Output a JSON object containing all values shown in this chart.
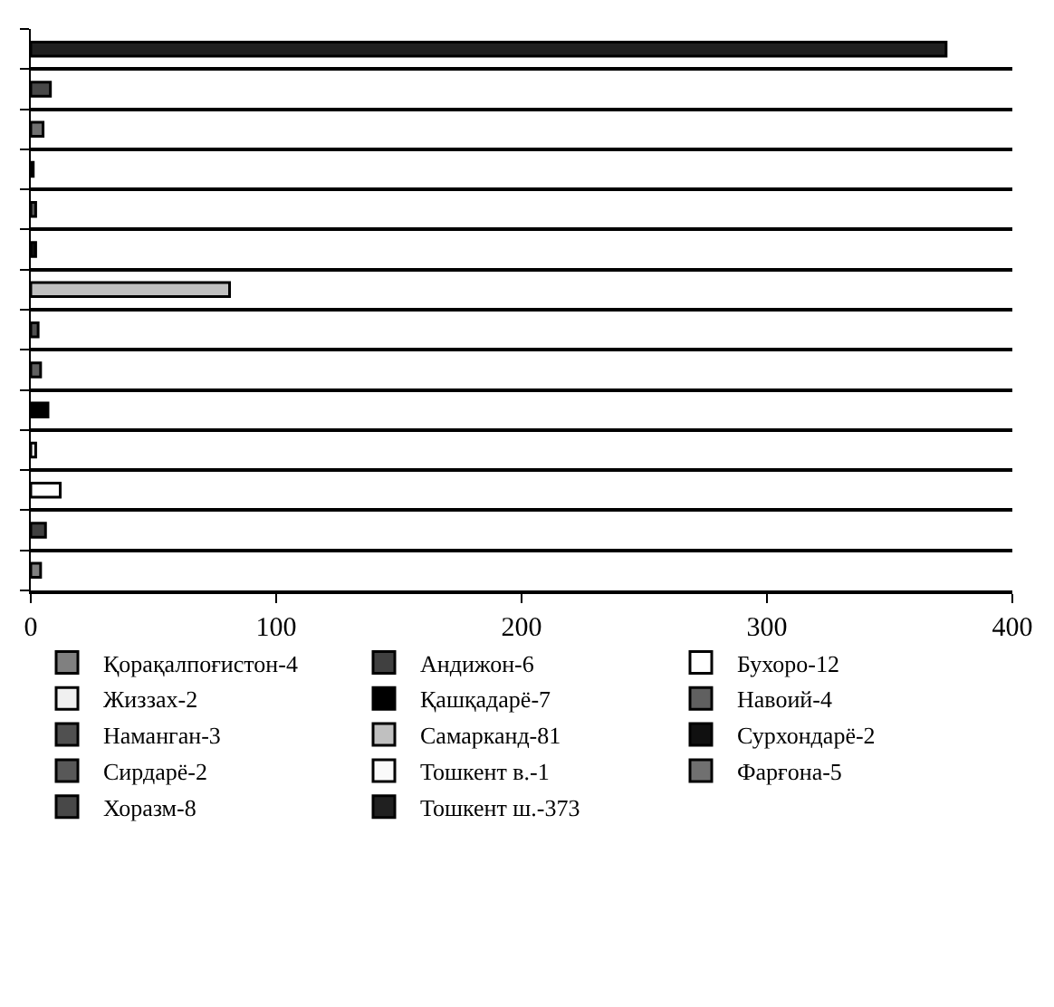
{
  "chart_data": {
    "type": "bar",
    "orientation": "horizontal",
    "categories": [
      null,
      null,
      null,
      null,
      null,
      null,
      null,
      null,
      null,
      null,
      null,
      null,
      null,
      null
    ],
    "series": [
      {
        "name": "Қорақалпоғистон-4",
        "color": "#808080",
        "values": [
          null,
          null,
          null,
          null,
          null,
          null,
          null,
          null,
          null,
          null,
          null,
          null,
          null,
          4
        ]
      },
      {
        "name": "Андижон-6",
        "color": "#404040",
        "values": [
          null,
          null,
          null,
          null,
          null,
          null,
          null,
          null,
          null,
          null,
          null,
          null,
          6,
          null
        ]
      },
      {
        "name": "Бухоро-12",
        "color": "#ffffff",
        "values": [
          null,
          null,
          null,
          null,
          null,
          null,
          null,
          null,
          null,
          null,
          null,
          12,
          null,
          null
        ]
      },
      {
        "name": "Жиззах-2",
        "color": "#f0f0f0",
        "values": [
          null,
          null,
          null,
          null,
          null,
          null,
          null,
          null,
          null,
          null,
          2,
          null,
          null,
          null
        ]
      },
      {
        "name": "Қашқадарё-7",
        "color": "#000000",
        "values": [
          null,
          null,
          null,
          null,
          null,
          null,
          null,
          null,
          null,
          7,
          null,
          null,
          null,
          null
        ]
      },
      {
        "name": "Навоий-4",
        "color": "#606060",
        "values": [
          null,
          null,
          null,
          null,
          null,
          null,
          null,
          null,
          4,
          null,
          null,
          null,
          null,
          null
        ]
      },
      {
        "name": "Наманган-3",
        "color": "#505050",
        "values": [
          null,
          null,
          null,
          null,
          null,
          null,
          null,
          3,
          null,
          null,
          null,
          null,
          null,
          null
        ]
      },
      {
        "name": "Самарканд-81",
        "color": "#c0c0c0",
        "values": [
          null,
          null,
          null,
          null,
          null,
          null,
          81,
          null,
          null,
          null,
          null,
          null,
          null,
          null
        ]
      },
      {
        "name": "Сурхондарё-2",
        "color": "#101010",
        "values": [
          null,
          null,
          null,
          null,
          null,
          2,
          null,
          null,
          null,
          null,
          null,
          null,
          null,
          null
        ]
      },
      {
        "name": "Сирдарё-2",
        "color": "#585858",
        "values": [
          null,
          null,
          null,
          null,
          2,
          null,
          null,
          null,
          null,
          null,
          null,
          null,
          null,
          null
        ]
      },
      {
        "name": "Тошкент в.-1",
        "color": "#fafafa",
        "values": [
          null,
          null,
          null,
          1,
          null,
          null,
          null,
          null,
          null,
          null,
          null,
          null,
          null,
          null
        ]
      },
      {
        "name": "Фарғона-5",
        "color": "#707070",
        "values": [
          null,
          null,
          5,
          null,
          null,
          null,
          null,
          null,
          null,
          null,
          null,
          null,
          null,
          null
        ]
      },
      {
        "name": "Хоразм-8",
        "color": "#484848",
        "values": [
          null,
          8,
          null,
          null,
          null,
          null,
          null,
          null,
          null,
          null,
          null,
          null,
          null,
          null
        ]
      },
      {
        "name": "Тошкент ш.-373",
        "color": "#202020",
        "values": [
          373,
          null,
          null,
          null,
          null,
          null,
          null,
          null,
          null,
          null,
          null,
          null,
          null,
          null
        ]
      }
    ],
    "xlim": [
      0,
      400
    ],
    "xticks": [
      0,
      100,
      200,
      300,
      400
    ],
    "grid": "y",
    "legend": "bottom",
    "tick_labels": "x"
  }
}
